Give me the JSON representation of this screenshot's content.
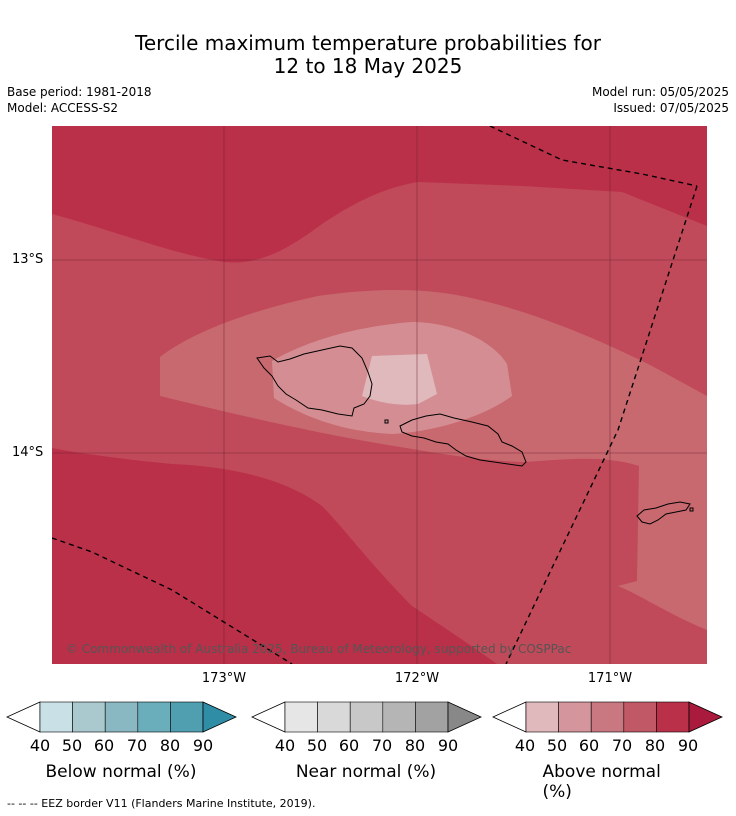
{
  "title_line1": "Tercile maximum temperature probabilities for",
  "title_line2": "12 to 18 May 2025",
  "meta": {
    "base_period": "Base period: 1981-2018",
    "model": "Model: ACCESS-S2",
    "model_run": "Model run: 05/05/2025",
    "issued": "Issued: 07/05/2025"
  },
  "map": {
    "lat_labels": [
      "13°S",
      "14°S"
    ],
    "lon_labels": [
      "173°W",
      "172°W",
      "171°W"
    ],
    "copyright": "© Commonwealth of Australia 2025, Bureau of Meteorology, supported by COSPPac",
    "colors": {
      "p90": "#bb3049",
      "p80": "#c04a59",
      "p70": "#c8696f",
      "p60": "#d48e93",
      "p50": "#e0b9bd",
      "coast": "#000000",
      "eez": "#000000"
    }
  },
  "colorbars": [
    {
      "label": "Below normal (%)",
      "ticks": [
        "40",
        "50",
        "60",
        "70",
        "80",
        "90"
      ],
      "colors": [
        "#c9e0e6",
        "#a9c9cf",
        "#8ab8c2",
        "#6aaebc",
        "#4f9fb1",
        "#2f8ea6"
      ]
    },
    {
      "label": "Near normal (%)",
      "ticks": [
        "40",
        "50",
        "60",
        "70",
        "80",
        "90"
      ],
      "colors": [
        "#e6e6e6",
        "#d9d9d9",
        "#c8c8c8",
        "#b5b5b5",
        "#a2a2a2",
        "#888888"
      ]
    },
    {
      "label": "Above normal (%)",
      "ticks": [
        "40",
        "50",
        "60",
        "70",
        "80",
        "90"
      ],
      "colors": [
        "#e0b9bd",
        "#d4959c",
        "#c97780",
        "#c15866",
        "#bb3049",
        "#aa1a3c"
      ]
    }
  ],
  "footer": "--  --  -- EEZ border V11 (Flanders Marine Institute, 2019)."
}
